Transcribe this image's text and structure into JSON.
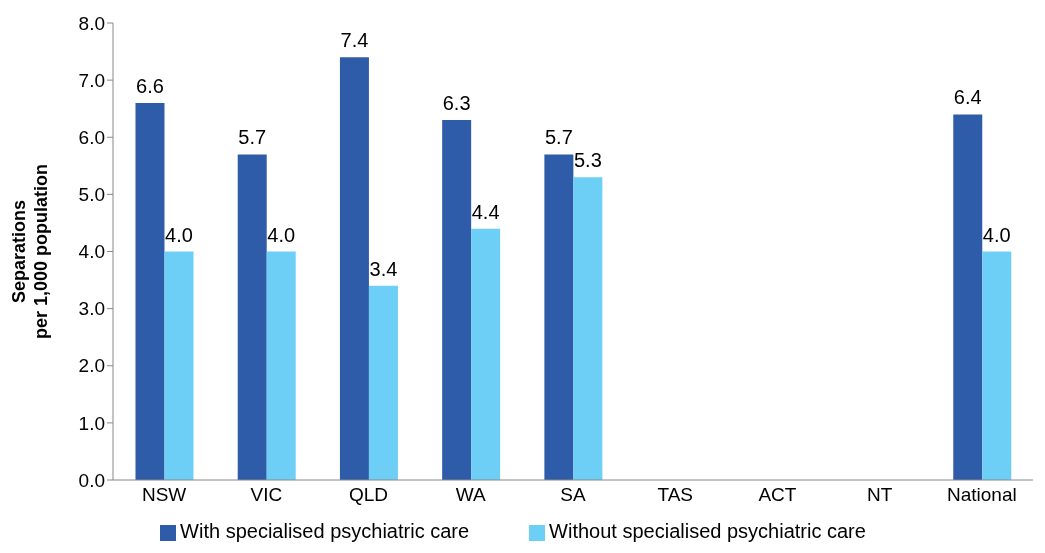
{
  "chart_data": {
    "type": "bar",
    "ylabel": "Separations\nper 1,000 population",
    "categories": [
      "NSW",
      "VIC",
      "QLD",
      "WA",
      "SA",
      "TAS",
      "ACT",
      "NT",
      "National"
    ],
    "series": [
      {
        "name": "With specialised psychiatric care",
        "color": "#2e5ca8",
        "values": [
          6.6,
          5.7,
          7.4,
          6.3,
          5.7,
          null,
          null,
          null,
          6.4
        ],
        "value_labels": [
          "6.6",
          "5.7",
          "7.4",
          "6.3",
          "5.7",
          null,
          null,
          null,
          "6.4"
        ]
      },
      {
        "name": "Without specialised psychiatric care",
        "color": "#6ecff6",
        "values": [
          4.0,
          4.0,
          3.4,
          4.4,
          5.3,
          null,
          null,
          null,
          4.0
        ],
        "value_labels": [
          "4.0",
          "4.0",
          "3.4",
          "4.4",
          "5.3",
          null,
          null,
          null,
          "4.0"
        ]
      }
    ],
    "ylim": [
      0,
      8
    ],
    "yticks": [
      {
        "value": 0,
        "label": "0.0"
      },
      {
        "value": 1,
        "label": "1.0"
      },
      {
        "value": 2,
        "label": "2.0"
      },
      {
        "value": 3,
        "label": "3.0"
      },
      {
        "value": 4,
        "label": "4.0"
      },
      {
        "value": 5,
        "label": "5.0"
      },
      {
        "value": 6,
        "label": "6.0"
      },
      {
        "value": 7,
        "label": "7.0"
      },
      {
        "value": 8,
        "label": "8.0"
      }
    ],
    "grid": false,
    "legend": "bottom"
  }
}
